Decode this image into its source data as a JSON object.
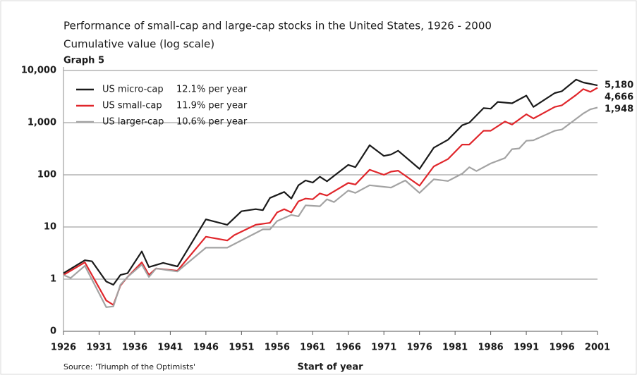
{
  "chart_data": {
    "type": "line",
    "title": "Performance of small-cap and large-cap stocks in the United States, 1926 - 2000",
    "subtitle": "Cumulative value (log scale)",
    "graph_label": "Graph 5",
    "source": "Source: 'Triumph of the Optimists'",
    "x_label": "Start of year",
    "log_scale": true,
    "grid": true,
    "legend": "upper left",
    "xlim": [
      1926,
      2001
    ],
    "xticks": [
      1926,
      1931,
      1936,
      1941,
      1946,
      1951,
      1956,
      1961,
      1966,
      1971,
      1976,
      1981,
      1986,
      1991,
      1996,
      2001
    ],
    "ylim": [
      0.1,
      10000
    ],
    "yticks": [
      {
        "value": 0.1,
        "label": "0"
      },
      1,
      10,
      100,
      {
        "value": 1000,
        "label": "1,000"
      },
      {
        "value": 10000,
        "label": "10,000"
      }
    ],
    "series": [
      {
        "name": "US micro-cap",
        "return_label": "12.1% per year",
        "color": "#1a1a1a",
        "x": [
          1926,
          1929,
          1930,
          1932,
          1933,
          1934,
          1935,
          1937,
          1938,
          1940,
          1942,
          1946,
          1949,
          1951,
          1953,
          1954,
          1955,
          1957,
          1958,
          1959,
          1960,
          1961,
          1962,
          1963,
          1966,
          1967,
          1969,
          1971,
          1972,
          1973,
          1976,
          1978,
          1980,
          1982,
          1983,
          1985,
          1986,
          1987,
          1989,
          1991,
          1992,
          1995,
          1996,
          1998,
          1999,
          2001
        ],
        "values": [
          1.3,
          2.3,
          2.2,
          0.9,
          0.78,
          1.2,
          1.3,
          3.4,
          1.7,
          2.05,
          1.75,
          14,
          11,
          20,
          22,
          21,
          36,
          47,
          35,
          63,
          78,
          71,
          92,
          75,
          155,
          140,
          370,
          230,
          245,
          290,
          130,
          330,
          470,
          890,
          1000,
          1900,
          1850,
          2500,
          2350,
          3300,
          2000,
          3700,
          4000,
          6700,
          5900,
          5180
        ],
        "value_labels": [
          null,
          null,
          null,
          null,
          null,
          null,
          null,
          null,
          null,
          null,
          null,
          null,
          null,
          null,
          null,
          null,
          null,
          null,
          null,
          null,
          null,
          null,
          null,
          null,
          null,
          null,
          null,
          null,
          null,
          null,
          null,
          null,
          null,
          null,
          null,
          null,
          null,
          null,
          null,
          null,
          null,
          null,
          null,
          null,
          null,
          "5,180"
        ]
      },
      {
        "name": "US small-cap",
        "return_label": "11.9% per year",
        "color": "#e0262b",
        "x": [
          1926,
          1929,
          1932,
          1933,
          1934,
          1935,
          1937,
          1938,
          1939,
          1942,
          1946,
          1949,
          1950,
          1953,
          1955,
          1956,
          1957,
          1958,
          1959,
          1960,
          1961,
          1962,
          1963,
          1966,
          1967,
          1969,
          1971,
          1972,
          1973,
          1976,
          1978,
          1980,
          1982,
          1983,
          1985,
          1986,
          1988,
          1989,
          1991,
          1992,
          1995,
          1996,
          1998,
          1999,
          2000,
          2001
        ],
        "values": [
          1.2,
          2.1,
          0.39,
          0.32,
          0.75,
          1.1,
          2.1,
          1.2,
          1.6,
          1.45,
          6.5,
          5.5,
          7,
          11,
          12,
          19,
          22,
          19,
          31,
          35,
          34,
          44,
          40,
          70,
          65,
          125,
          100,
          115,
          120,
          62,
          145,
          200,
          380,
          380,
          700,
          700,
          1050,
          920,
          1450,
          1200,
          2000,
          2150,
          3400,
          4400,
          3900,
          4666
        ],
        "value_labels": [
          null,
          null,
          null,
          null,
          null,
          null,
          null,
          null,
          null,
          null,
          null,
          null,
          null,
          null,
          null,
          null,
          null,
          null,
          null,
          null,
          null,
          null,
          null,
          null,
          null,
          null,
          null,
          null,
          null,
          null,
          null,
          null,
          null,
          null,
          null,
          null,
          null,
          null,
          null,
          null,
          null,
          null,
          null,
          null,
          null,
          "4,666"
        ]
      },
      {
        "name": "US larger-cap",
        "return_label": "10.6% per year",
        "color": "#a3a3a3",
        "x": [
          1926,
          1927,
          1929,
          1932,
          1933,
          1934,
          1935,
          1937,
          1938,
          1939,
          1942,
          1946,
          1949,
          1954,
          1955,
          1956,
          1958,
          1959,
          1960,
          1962,
          1963,
          1964,
          1966,
          1967,
          1969,
          1972,
          1974,
          1976,
          1978,
          1980,
          1982,
          1983,
          1984,
          1986,
          1988,
          1989,
          1990,
          1991,
          1992,
          1995,
          1996,
          1999,
          2000,
          2001
        ],
        "values": [
          1.2,
          1.05,
          1.8,
          0.29,
          0.3,
          0.78,
          1.1,
          1.9,
          1.1,
          1.6,
          1.4,
          4,
          4,
          9,
          9,
          13,
          17,
          16,
          26,
          25,
          34,
          30,
          50,
          45,
          63,
          57,
          78,
          45,
          82,
          76,
          105,
          140,
          118,
          165,
          210,
          310,
          320,
          450,
          460,
          700,
          740,
          1500,
          1800,
          1948
        ],
        "value_labels": [
          null,
          null,
          null,
          null,
          null,
          null,
          null,
          null,
          null,
          null,
          null,
          null,
          null,
          null,
          null,
          null,
          null,
          null,
          null,
          null,
          null,
          null,
          null,
          null,
          null,
          null,
          null,
          null,
          null,
          null,
          null,
          null,
          null,
          null,
          null,
          null,
          null,
          null,
          null,
          null,
          null,
          null,
          null,
          "1,948"
        ]
      }
    ]
  }
}
